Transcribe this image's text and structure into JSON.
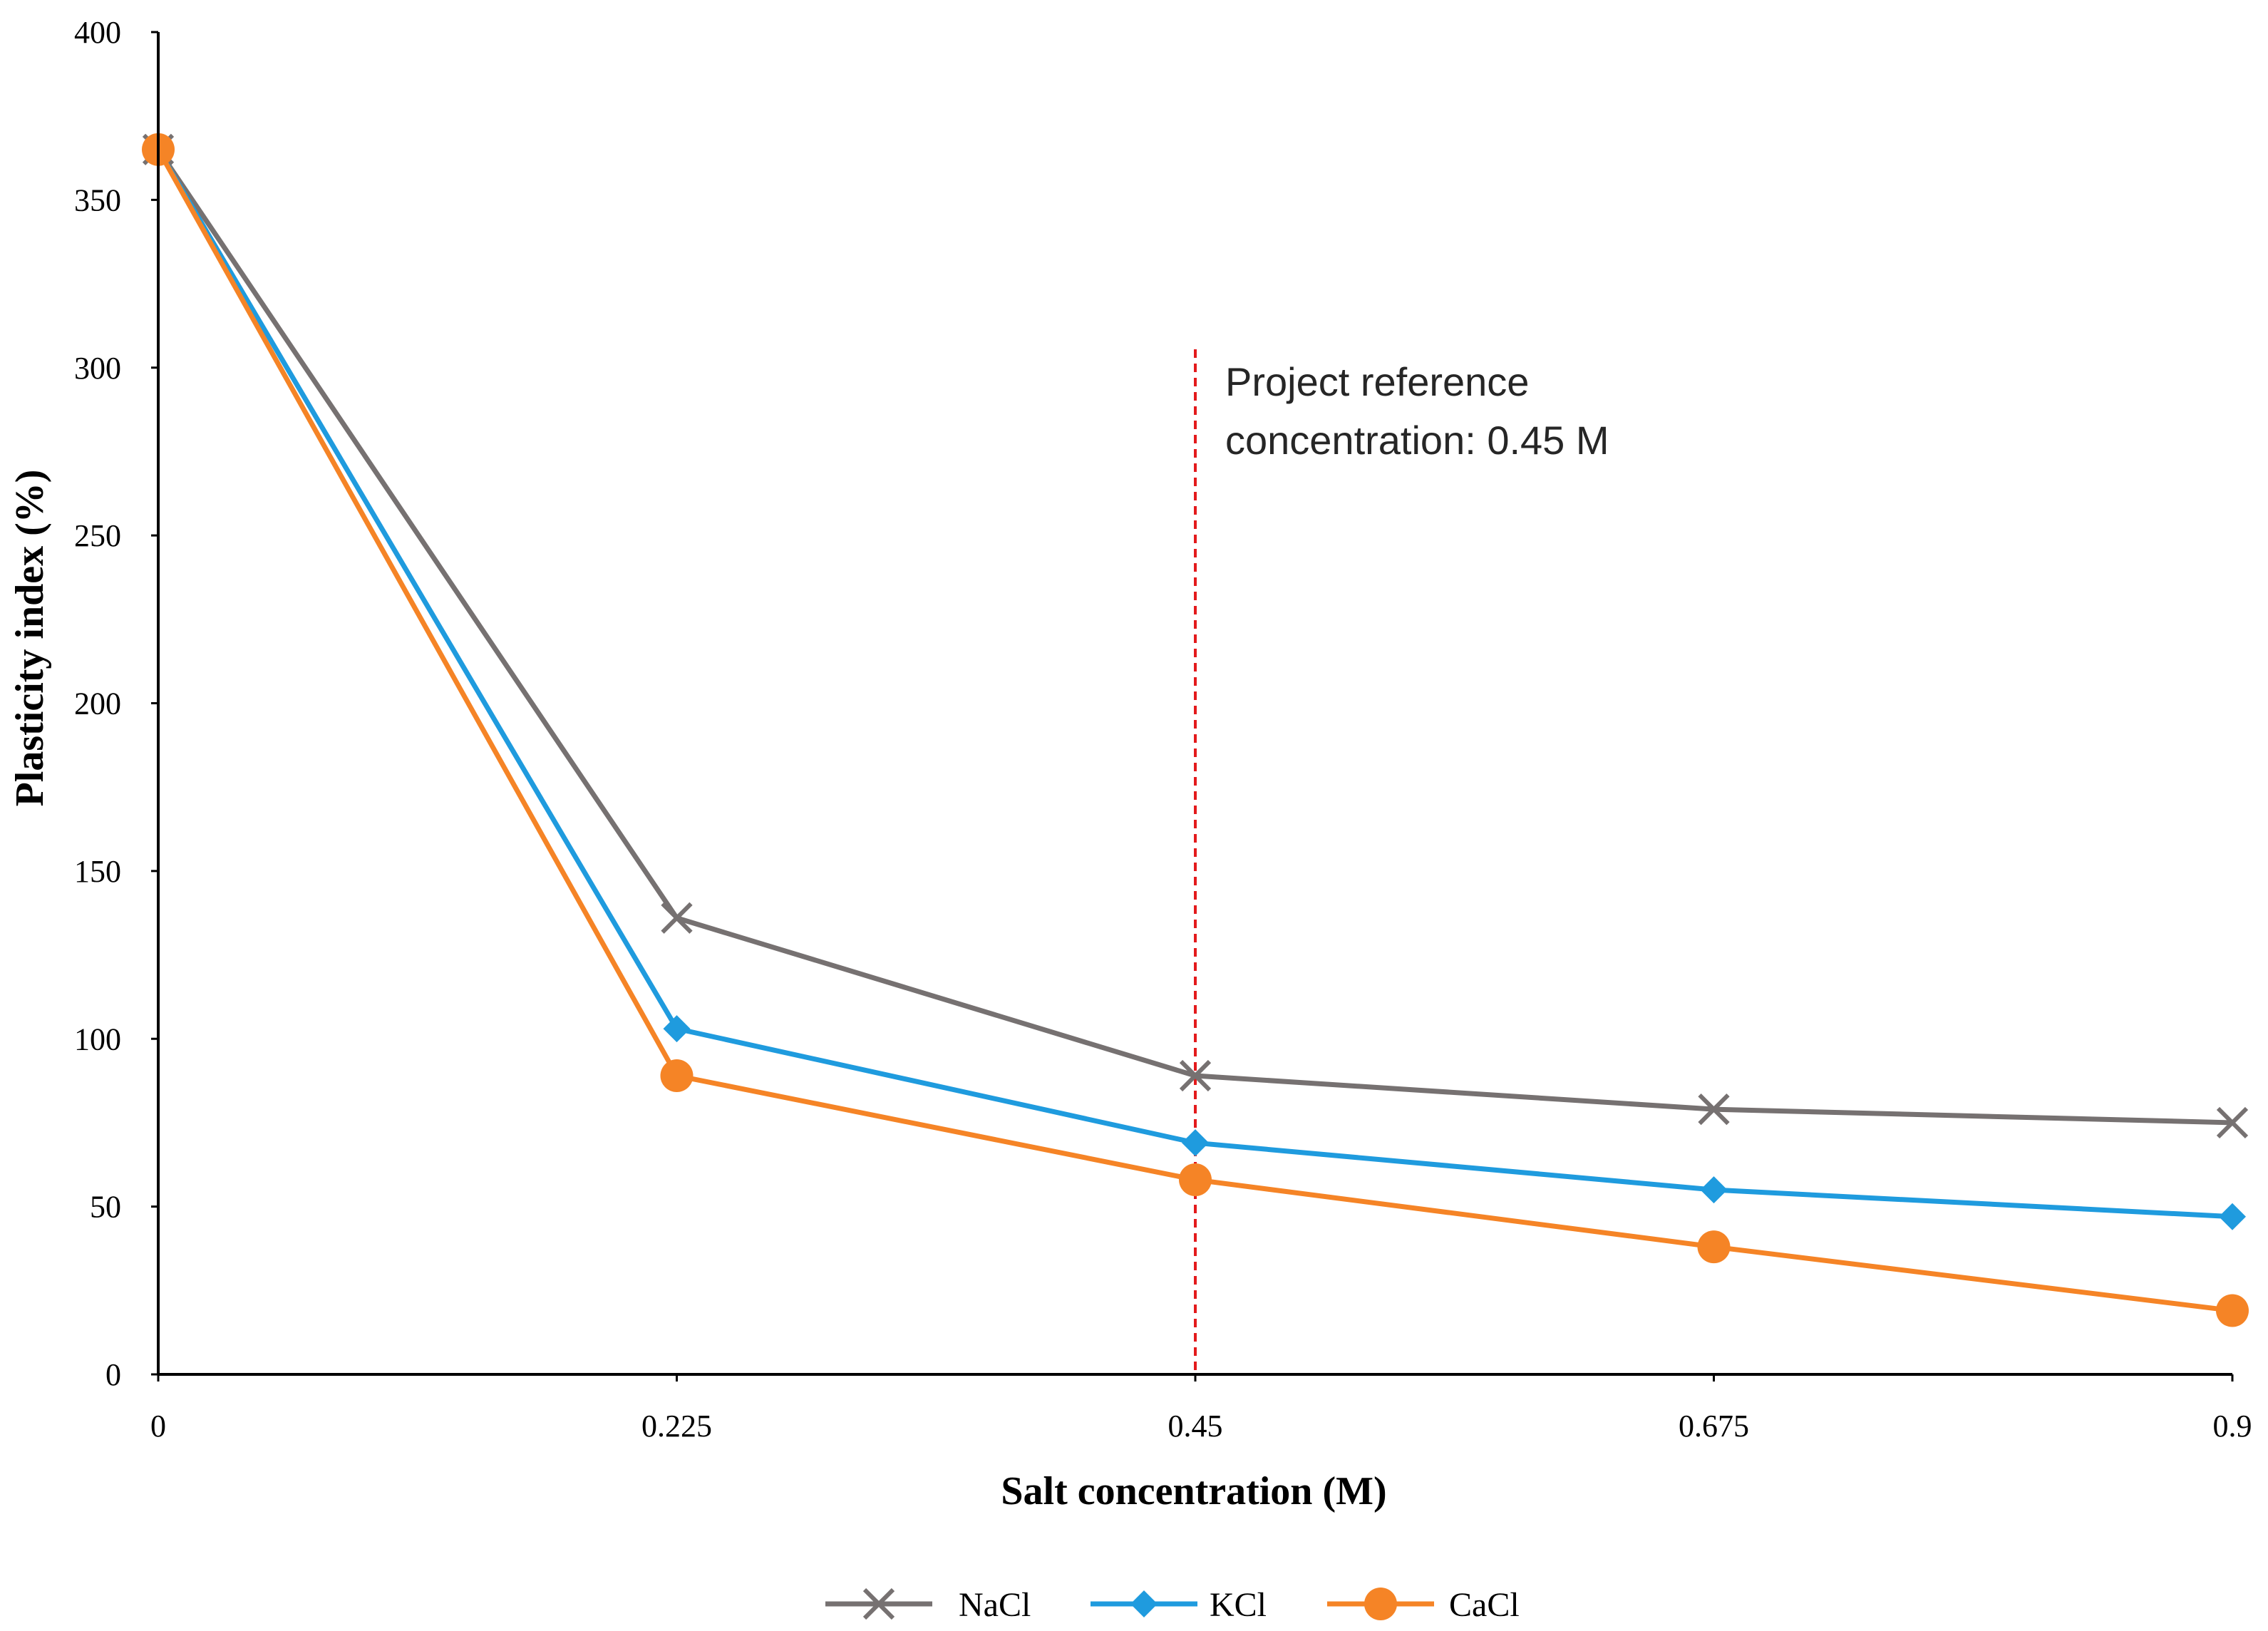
{
  "chart_data": {
    "type": "line",
    "title": "",
    "xlabel": "Salt concentration (M)",
    "ylabel": "Plasticity index (%)",
    "x": [
      0,
      0.225,
      0.45,
      0.675,
      0.9
    ],
    "x_tick_labels": [
      "0",
      "0.225",
      "0.45",
      "0.675",
      "0.9"
    ],
    "ylim": [
      0,
      400
    ],
    "y_ticks": [
      0,
      50,
      100,
      150,
      200,
      250,
      300,
      350,
      400
    ],
    "grid": false,
    "legend_position": "bottom",
    "series": [
      {
        "name": "NaCl",
        "values": [
          365,
          136,
          89,
          79,
          75
        ],
        "color": "#767171",
        "marker": "x"
      },
      {
        "name": "KCl",
        "values": [
          365,
          103,
          69,
          55,
          47
        ],
        "color": "#1F9BDE",
        "marker": "diamond"
      },
      {
        "name": "CaCl",
        "values": [
          365,
          89,
          58,
          38,
          19
        ],
        "color": "#F58426",
        "marker": "circle"
      }
    ],
    "reference_line": {
      "x": 0.45,
      "color": "#E31A1C",
      "label_line1": "Project reference",
      "label_line2": "concentration: 0.45 M"
    }
  }
}
